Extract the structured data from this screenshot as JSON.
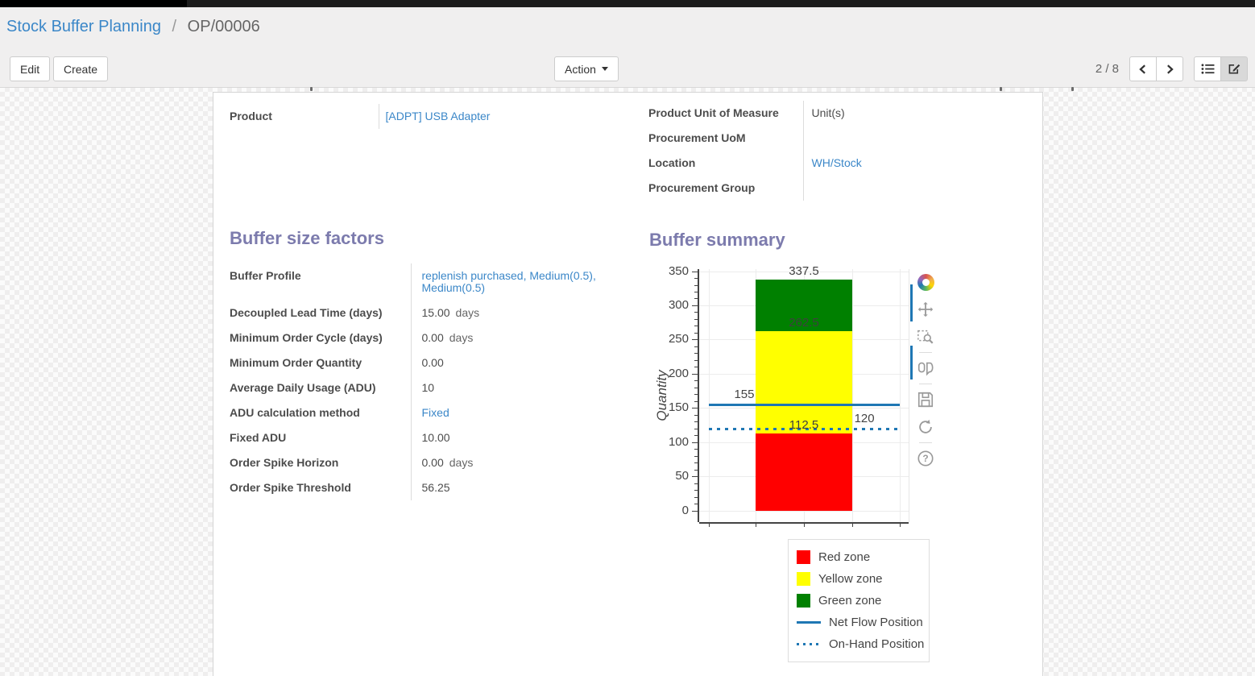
{
  "breadcrumb": {
    "link": "Stock Buffer Planning",
    "separator": "/",
    "current": "OP/00006"
  },
  "toolbar": {
    "edit": "Edit",
    "create": "Create",
    "action": "Action",
    "pager": "2 / 8"
  },
  "chart_toolbar": {
    "icons": [
      "plotly-logo",
      "pan",
      "box-zoom",
      "hover-compare",
      "save-snapshot",
      "autoscale",
      "help"
    ]
  },
  "form": {
    "left_fields": [
      {
        "label": "Product",
        "value": "[ADPT] USB Adapter",
        "link": true
      }
    ],
    "right_fields": [
      {
        "label": "Product Unit of Measure",
        "value": "Unit(s)",
        "link": false
      },
      {
        "label": "Procurement UoM",
        "value": "",
        "link": false
      },
      {
        "label": "Location",
        "value": "WH/Stock",
        "link": true
      },
      {
        "label": "Procurement Group",
        "value": "",
        "link": false
      }
    ],
    "sections": {
      "factors": {
        "title": "Buffer size factors",
        "fields": [
          {
            "label": "Buffer Profile",
            "value": "replenish purchased, Medium(0.5), Medium(0.5)",
            "link": true
          },
          {
            "label": "Decoupled Lead Time (days)",
            "value": "15.00",
            "suffix": "days"
          },
          {
            "label": "Minimum Order Cycle (days)",
            "value": "0.00",
            "suffix": "days"
          },
          {
            "label": "Minimum Order Quantity",
            "value": "0.00"
          },
          {
            "label": "Average Daily Usage (ADU)",
            "value": "10"
          },
          {
            "label": "ADU calculation method",
            "value": "Fixed",
            "link": true
          },
          {
            "label": "Fixed ADU",
            "value": "10.00"
          },
          {
            "label": "Order Spike Horizon",
            "value": "0.00",
            "suffix": "days"
          },
          {
            "label": "Order Spike Threshold",
            "value": "56.25"
          }
        ]
      },
      "summary": {
        "title": "Buffer summary"
      }
    }
  },
  "chart_data": {
    "type": "bar",
    "title": "Buffer summary",
    "xlabel": "",
    "ylabel": "Quantity",
    "ylim": [
      0,
      350
    ],
    "ytick_step": 50,
    "yminor_step": 10,
    "grid": true,
    "legend_position": "bottom-right",
    "zones": [
      {
        "name": "Red zone",
        "from": 0,
        "to": 112.5,
        "color": "#ff0000",
        "label": "112.5"
      },
      {
        "name": "Yellow zone",
        "from": 112.5,
        "to": 262.5,
        "color": "#ffff00",
        "label": "262.5"
      },
      {
        "name": "Green zone",
        "from": 262.5,
        "to": 337.5,
        "color": "#008000",
        "label": "337.5"
      }
    ],
    "lines": [
      {
        "name": "Net Flow Position",
        "value": 155,
        "style": "solid",
        "color": "#1f77b4",
        "label": "155",
        "label_side": "left"
      },
      {
        "name": "On-Hand Position",
        "value": 120,
        "style": "dotted",
        "color": "#1f77b4",
        "label": "120",
        "label_side": "right"
      }
    ],
    "legend": [
      "Red zone",
      "Yellow zone",
      "Green zone",
      "Net Flow Position",
      "On-Hand Position"
    ]
  },
  "colors": {
    "link": "#3b87c8",
    "section_heading": "#7c7bad",
    "red_zone": "#ff0000",
    "yellow_zone": "#ffff00",
    "green_zone": "#008000",
    "flow_line": "#1f77b4"
  }
}
